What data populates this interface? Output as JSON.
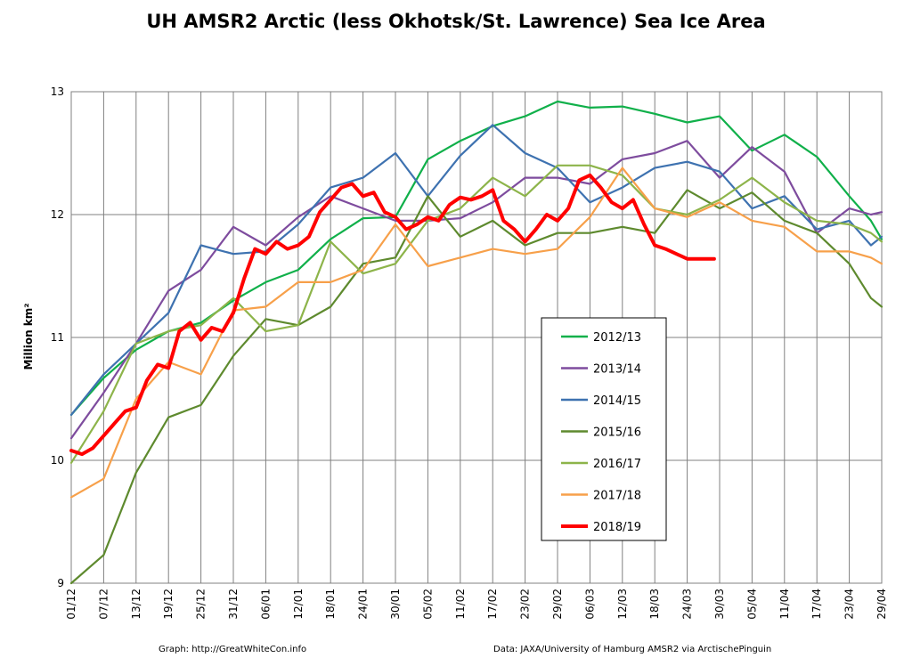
{
  "chart_data": {
    "type": "line",
    "title": "UH AMSR2 Arctic (less Okhotsk/St. Lawrence) Sea Ice Area",
    "ylabel": "Million km²",
    "xlabel": "",
    "ylim": [
      9,
      13
    ],
    "yticks": [
      9,
      10,
      11,
      12,
      13
    ],
    "x_tick_labels": [
      "01/12",
      "07/12",
      "13/12",
      "19/12",
      "25/12",
      "31/12",
      "06/01",
      "12/01",
      "18/01",
      "24/01",
      "30/01",
      "05/02",
      "11/02",
      "17/02",
      "23/02",
      "29/02",
      "06/03",
      "12/03",
      "18/03",
      "24/03",
      "30/03",
      "05/04",
      "11/04",
      "17/04",
      "23/04",
      "29/04"
    ],
    "grid": true,
    "legend_position": "center-right",
    "credits": {
      "left": "Graph: http://GreatWhiteCon.info",
      "right": "Data: JAXA/University of Hamburg AMSR2 via ArctischePinguin"
    },
    "series": [
      {
        "name": "2012/13",
        "color": "#10b04a",
        "x": [
          0,
          6,
          12,
          18,
          24,
          30,
          36,
          42,
          48,
          54,
          60,
          66,
          72,
          78,
          84,
          90,
          96,
          102,
          108,
          114,
          120,
          126,
          132,
          138,
          144,
          148,
          150
        ],
        "values": [
          10.37,
          10.67,
          10.9,
          11.05,
          11.12,
          11.3,
          11.45,
          11.55,
          11.8,
          11.97,
          11.98,
          12.45,
          12.6,
          12.72,
          12.8,
          12.92,
          12.87,
          12.88,
          12.82,
          12.75,
          12.8,
          12.52,
          12.65,
          12.47,
          12.15,
          11.95,
          11.8
        ]
      },
      {
        "name": "2013/14",
        "color": "#7e4c9e",
        "x": [
          0,
          6,
          12,
          18,
          24,
          30,
          36,
          42,
          48,
          54,
          60,
          66,
          72,
          78,
          84,
          90,
          96,
          102,
          108,
          114,
          120,
          126,
          132,
          138,
          144,
          148,
          150
        ],
        "values": [
          10.18,
          10.55,
          10.95,
          11.38,
          11.55,
          11.9,
          11.75,
          11.98,
          12.15,
          12.05,
          11.95,
          11.95,
          11.97,
          12.1,
          12.3,
          12.3,
          12.25,
          12.45,
          12.5,
          12.6,
          12.3,
          12.55,
          12.35,
          11.85,
          12.05,
          12.0,
          12.02
        ]
      },
      {
        "name": "2014/15",
        "color": "#3e72b0",
        "x": [
          0,
          6,
          12,
          18,
          24,
          30,
          36,
          42,
          48,
          54,
          60,
          66,
          72,
          78,
          84,
          90,
          96,
          102,
          108,
          114,
          120,
          126,
          132,
          138,
          144,
          148,
          150
        ],
        "values": [
          10.37,
          10.7,
          10.95,
          11.2,
          11.75,
          11.68,
          11.7,
          11.92,
          12.22,
          12.3,
          12.5,
          12.15,
          12.48,
          12.73,
          12.5,
          12.38,
          12.1,
          12.22,
          12.38,
          12.43,
          12.35,
          12.05,
          12.15,
          11.88,
          11.95,
          11.75,
          11.82
        ]
      },
      {
        "name": "2015/16",
        "color": "#5e8a2e",
        "x": [
          0,
          6,
          12,
          18,
          24,
          30,
          36,
          42,
          48,
          54,
          60,
          66,
          72,
          78,
          84,
          90,
          96,
          102,
          108,
          114,
          120,
          126,
          132,
          138,
          144,
          148,
          150
        ],
        "values": [
          9.0,
          9.23,
          9.9,
          10.35,
          10.45,
          10.85,
          11.15,
          11.1,
          11.25,
          11.6,
          11.65,
          12.15,
          11.82,
          11.95,
          11.75,
          11.85,
          11.85,
          11.9,
          11.85,
          12.2,
          12.05,
          12.18,
          11.95,
          11.85,
          11.6,
          11.32,
          11.25
        ]
      },
      {
        "name": "2016/17",
        "color": "#8db44a",
        "x": [
          0,
          6,
          12,
          18,
          24,
          30,
          36,
          42,
          48,
          54,
          60,
          66,
          72,
          78,
          84,
          90,
          96,
          102,
          108,
          114,
          120,
          126,
          132,
          138,
          144,
          148,
          150
        ],
        "values": [
          9.98,
          10.4,
          10.95,
          11.05,
          11.1,
          11.32,
          11.05,
          11.1,
          11.78,
          11.52,
          11.6,
          11.95,
          12.05,
          12.3,
          12.15,
          12.4,
          12.4,
          12.32,
          12.05,
          12.0,
          12.12,
          12.3,
          12.1,
          11.95,
          11.92,
          11.85,
          11.78
        ]
      },
      {
        "name": "2017/18",
        "color": "#f7a04a",
        "x": [
          0,
          6,
          12,
          18,
          24,
          30,
          36,
          42,
          48,
          54,
          60,
          66,
          72,
          78,
          84,
          90,
          96,
          102,
          108,
          114,
          120,
          126,
          132,
          138,
          144,
          148,
          150
        ],
        "values": [
          9.7,
          9.85,
          10.5,
          10.8,
          10.7,
          11.22,
          11.25,
          11.45,
          11.45,
          11.55,
          11.92,
          11.58,
          11.65,
          11.72,
          11.68,
          11.72,
          11.98,
          12.38,
          12.05,
          11.98,
          12.1,
          11.95,
          11.9,
          11.7,
          11.7,
          11.65,
          11.6
        ]
      },
      {
        "name": "2018/19",
        "color": "#ff0000",
        "x": [
          0,
          2,
          4,
          6,
          8,
          10,
          12,
          14,
          16,
          18,
          20,
          22,
          24,
          26,
          28,
          30,
          32,
          34,
          36,
          38,
          40,
          42,
          44,
          46,
          48,
          50,
          52,
          54,
          56,
          58,
          60,
          62,
          64,
          66,
          68,
          70,
          72,
          74,
          76,
          78,
          80,
          82,
          84,
          86,
          88,
          90,
          92,
          94,
          96,
          98,
          100,
          102,
          104,
          106,
          108,
          110,
          112,
          114,
          116,
          118,
          119
        ],
        "values": [
          10.08,
          10.05,
          10.1,
          10.2,
          10.3,
          10.4,
          10.43,
          10.65,
          10.78,
          10.75,
          11.05,
          11.12,
          10.98,
          11.08,
          11.05,
          11.2,
          11.48,
          11.72,
          11.68,
          11.78,
          11.72,
          11.75,
          11.82,
          12.02,
          12.12,
          12.22,
          12.25,
          12.15,
          12.18,
          12.02,
          11.98,
          11.88,
          11.92,
          11.98,
          11.95,
          12.08,
          12.14,
          12.12,
          12.15,
          12.2,
          11.95,
          11.88,
          11.78,
          11.88,
          12.0,
          11.95,
          12.05,
          12.28,
          12.32,
          12.22,
          12.1,
          12.05,
          12.12,
          11.92,
          11.75,
          11.72,
          11.68,
          11.64,
          11.64,
          11.64,
          11.64
        ]
      }
    ]
  }
}
